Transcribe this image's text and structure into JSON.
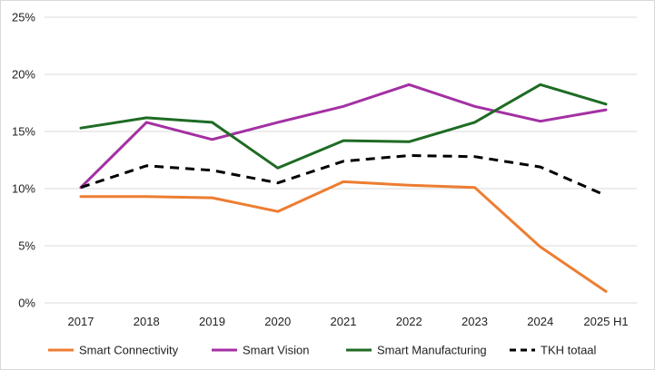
{
  "chart_data": {
    "type": "line",
    "title": "",
    "xlabel": "",
    "ylabel": "",
    "categories": [
      "2017",
      "2018",
      "2019",
      "2020",
      "2021",
      "2022",
      "2023",
      "2024",
      "2025 H1"
    ],
    "ylim": [
      0,
      25
    ],
    "yticks": [
      "0%",
      "5%",
      "10%",
      "15%",
      "20%",
      "25%"
    ],
    "ytick_values": [
      0,
      5,
      10,
      15,
      20,
      25
    ],
    "grid": true,
    "legend_position": "bottom",
    "series": [
      {
        "name": "Smart Connectivity",
        "color": "#ed7d31",
        "dash": "solid",
        "values": [
          9.3,
          9.3,
          9.2,
          8.0,
          10.6,
          10.3,
          10.1,
          4.9,
          1.0
        ]
      },
      {
        "name": "Smart Vision",
        "color": "#a330a3",
        "dash": "solid",
        "values": [
          10.1,
          15.8,
          14.3,
          15.8,
          17.2,
          19.1,
          17.2,
          15.9,
          16.9
        ]
      },
      {
        "name": "Smart Manufacturing",
        "color": "#1e6b24",
        "dash": "solid",
        "values": [
          15.3,
          16.2,
          15.8,
          11.8,
          14.2,
          14.1,
          15.8,
          19.1,
          17.4
        ]
      },
      {
        "name": "TKH totaal",
        "color": "#000000",
        "dash": "dashed",
        "values": [
          10.1,
          12.0,
          11.6,
          10.5,
          12.4,
          12.9,
          12.8,
          11.9,
          9.4
        ]
      }
    ]
  }
}
